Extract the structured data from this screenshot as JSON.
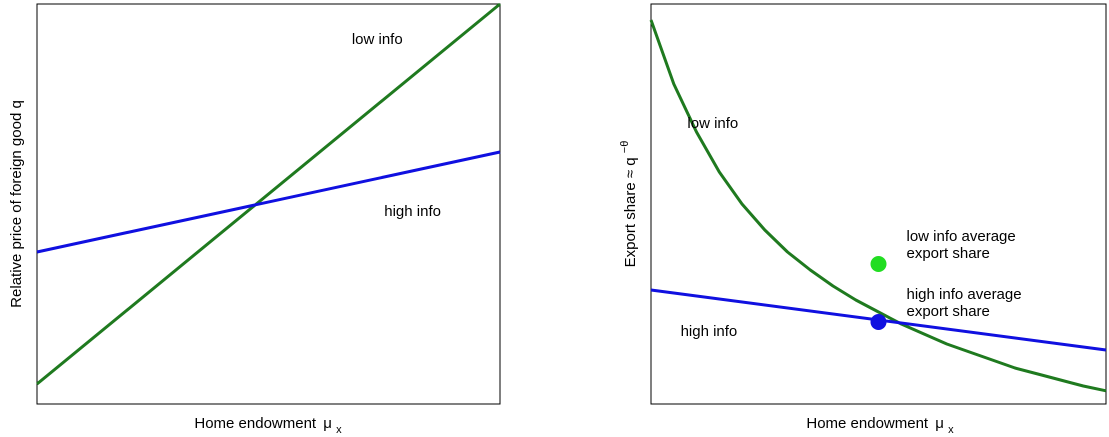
{
  "chart_data": [
    {
      "type": "line",
      "title": "",
      "xlabel": "Home endowment",
      "xlabel_symbol": "μ",
      "xlabel_sub": "x",
      "ylabel": "Relative price of foreign good q",
      "xlim": [
        0,
        1
      ],
      "ylim": [
        0,
        1
      ],
      "ticks": "none",
      "grid": false,
      "series": [
        {
          "name": "low info",
          "color": "#1f7a1f",
          "x": [
            0,
            1
          ],
          "y": [
            0.05,
            1.0
          ]
        },
        {
          "name": "high info",
          "color": "#1010e0",
          "x": [
            0,
            1
          ],
          "y": [
            0.38,
            0.63
          ]
        }
      ],
      "annotations": [
        {
          "text": "low info",
          "x": 0.68,
          "y": 0.9
        },
        {
          "text": "high info",
          "x": 0.75,
          "y": 0.47
        }
      ]
    },
    {
      "type": "line",
      "title": "",
      "xlabel": "Home endowment",
      "xlabel_symbol": "μ",
      "xlabel_sub": "x",
      "ylabel": "Export share ≈ q",
      "ylabel_sup": "−θ",
      "xlim": [
        0,
        1
      ],
      "ylim": [
        0,
        1
      ],
      "ticks": "none",
      "grid": false,
      "series": [
        {
          "name": "low info",
          "color": "#1f7a1f",
          "x": [
            0,
            0.05,
            0.1,
            0.15,
            0.2,
            0.25,
            0.3,
            0.35,
            0.4,
            0.45,
            0.5,
            0.55,
            0.6,
            0.65,
            0.7,
            0.75,
            0.8,
            0.85,
            0.9,
            0.95,
            1.0
          ],
          "y": [
            0.96,
            0.8,
            0.68,
            0.58,
            0.5,
            0.435,
            0.38,
            0.335,
            0.295,
            0.26,
            0.23,
            0.2,
            0.175,
            0.15,
            0.13,
            0.11,
            0.09,
            0.075,
            0.06,
            0.045,
            0.033
          ]
        },
        {
          "name": "high info",
          "color": "#1010e0",
          "x": [
            0,
            1
          ],
          "y": [
            0.285,
            0.135
          ]
        }
      ],
      "points": [
        {
          "label": [
            "low info average",
            "export share"
          ],
          "x": 0.5,
          "y": 0.35,
          "color": "#22dd22"
        },
        {
          "label": [
            "high info average",
            "export share"
          ],
          "x": 0.5,
          "y": 0.205,
          "color": "#1010e0"
        }
      ],
      "annotations": [
        {
          "text": "low info",
          "x": 0.08,
          "y": 0.69
        },
        {
          "text": "high info",
          "x": 0.065,
          "y": 0.17
        }
      ]
    }
  ]
}
